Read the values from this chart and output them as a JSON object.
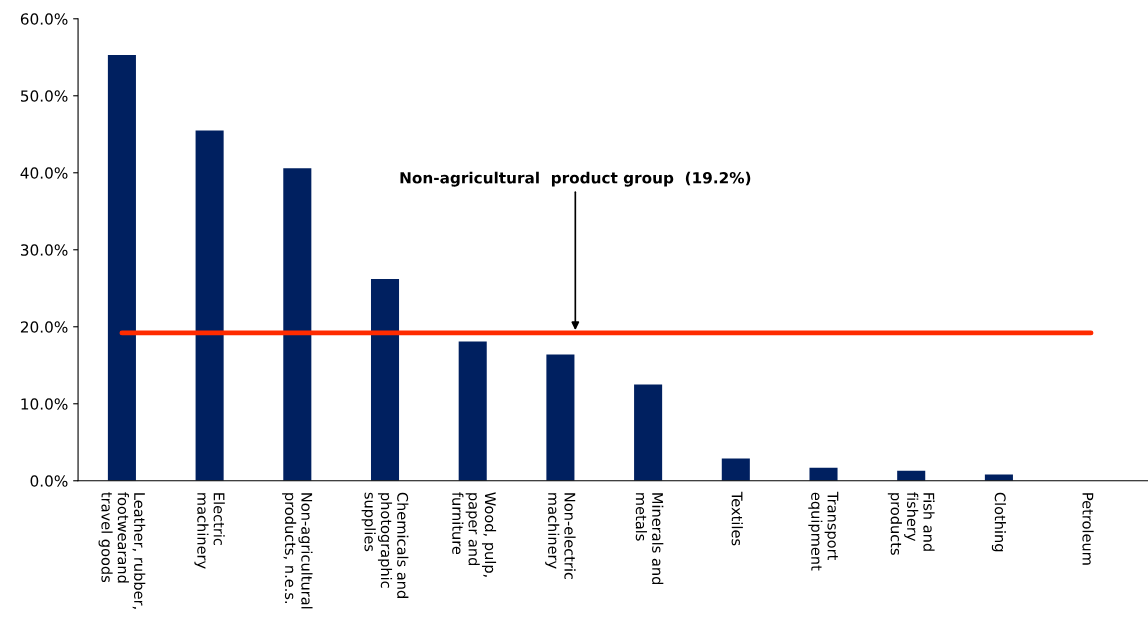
{
  "chart_data": {
    "type": "bar",
    "categories": [
      "Leather, rubber,\nfootwearand\ntravel goods",
      "Electric\nmachinery",
      "Non-agricultural\nproducts, n.e.s.",
      "Chemicals and\nphotographic\nsupplies",
      "Wood, pulp,\npaper and\nfurniture",
      "Non-electric\nmachinery",
      "Minerals and\nmetals",
      "Textiles",
      "Transport\nequipment",
      "Fish and\nfishery\nproducts",
      "Clothing",
      "Petroleum"
    ],
    "values": [
      55.3,
      45.5,
      40.6,
      26.2,
      18.1,
      16.4,
      12.5,
      2.9,
      1.7,
      1.3,
      0.8,
      0
    ],
    "color": "#002060",
    "ylim": [
      0,
      60
    ],
    "yticks": [
      {
        "value": 0,
        "label": "0.0%"
      },
      {
        "value": 10,
        "label": "10.0%"
      },
      {
        "value": 20,
        "label": "20.0%"
      },
      {
        "value": 30,
        "label": "30.0%"
      },
      {
        "value": 40,
        "label": "40.0%"
      },
      {
        "value": 50,
        "label": "50.0%"
      },
      {
        "value": 60,
        "label": "60.0%"
      }
    ],
    "grid": false,
    "ref_lines": [
      {
        "axis": "y",
        "value": 19.2,
        "label": "Non-agricultural  product group  (19.2%)",
        "color": "#ff2b00"
      }
    ]
  }
}
